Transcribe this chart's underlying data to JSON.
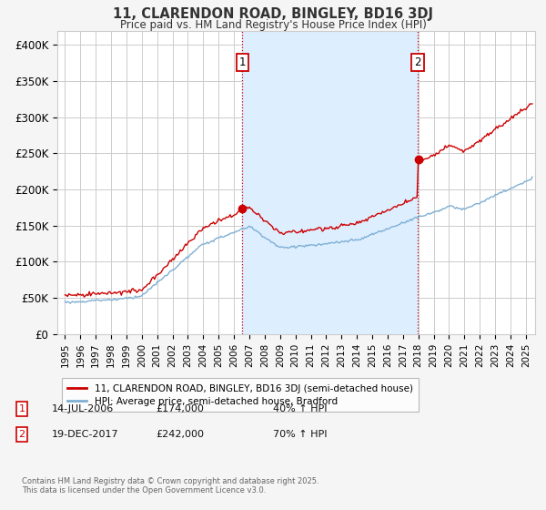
{
  "title": "11, CLARENDON ROAD, BINGLEY, BD16 3DJ",
  "subtitle": "Price paid vs. HM Land Registry's House Price Index (HPI)",
  "ylabel_ticks": [
    "£0",
    "£50K",
    "£100K",
    "£150K",
    "£200K",
    "£250K",
    "£300K",
    "£350K",
    "£400K"
  ],
  "ytick_values": [
    0,
    50000,
    100000,
    150000,
    200000,
    250000,
    300000,
    350000,
    400000
  ],
  "ylim": [
    0,
    420000
  ],
  "xlim_start": 1994.5,
  "xlim_end": 2025.6,
  "sale1_date": 2006.54,
  "sale1_price": 174000,
  "sale1_label": "1",
  "sale1_date_str": "14-JUL-2006",
  "sale1_price_str": "£174,000",
  "sale1_hpi_str": "40% ↑ HPI",
  "sale2_date": 2017.96,
  "sale2_price": 242000,
  "sale2_label": "2",
  "sale2_date_str": "19-DEC-2017",
  "sale2_price_str": "£242,000",
  "sale2_hpi_str": "70% ↑ HPI",
  "line_color_property": "#cc0000",
  "line_color_hpi": "#7eafd4",
  "background_color": "#f5f5f5",
  "plot_bg_color": "#ffffff",
  "shading_color": "#ddeeff",
  "grid_color": "#cccccc",
  "vline_color": "#cc0000",
  "legend_label_property": "11, CLARENDON ROAD, BINGLEY, BD16 3DJ (semi-detached house)",
  "legend_label_hpi": "HPI: Average price, semi-detached house, Bradford",
  "footnote": "Contains HM Land Registry data © Crown copyright and database right 2025.\nThis data is licensed under the Open Government Licence v3.0.",
  "xticks": [
    1995,
    1996,
    1997,
    1998,
    1999,
    2000,
    2001,
    2002,
    2003,
    2004,
    2005,
    2006,
    2007,
    2008,
    2009,
    2010,
    2011,
    2012,
    2013,
    2014,
    2015,
    2016,
    2017,
    2018,
    2019,
    2020,
    2021,
    2022,
    2023,
    2024,
    2025
  ]
}
